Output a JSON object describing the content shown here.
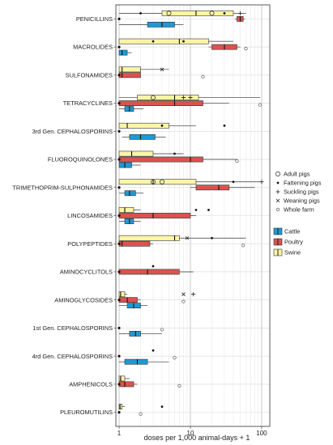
{
  "chart_data": {
    "type": "boxplot",
    "title": "",
    "xlabel": "doses per 1,000 animal-days + 1",
    "ylabel": "",
    "x_scale": "log10",
    "xlim": [
      0.9,
      130
    ],
    "x_ticks": [
      {
        "value": 1,
        "label": "1"
      },
      {
        "value": 10,
        "label": "10"
      },
      {
        "value": 100,
        "label": "100"
      }
    ],
    "grid": true,
    "legend_position": "right",
    "categories": [
      "PENICILLINS",
      "MACROLIDES",
      "SULFONAMIDES",
      "TETRACYCLINES",
      "3rd Gen. CEPHALOSPORINS",
      "FLUOROQUINOLONES",
      "TRIMETHOPRIM-SULPHONAMIDES",
      "LINCOSAMIDES",
      "POLYPEPTIDES",
      "AMINOCYCLITOLS",
      "AMINOGLYCOSIDES",
      "1st Gen. CEPHALOSPORINS",
      "4rd Gen. CEPHALOSPORINS",
      "AMPHENICOLS",
      "PLEUROMUTILINS"
    ],
    "species_legend": [
      {
        "name": "Cattle",
        "color": "#1c9ad6"
      },
      {
        "name": "Poultry",
        "color": "#d9534f"
      },
      {
        "name": "Swine",
        "color": "#fbf5a5"
      }
    ],
    "farm_type_legend": [
      {
        "name": "Adult pigs",
        "marker": "open-circle"
      },
      {
        "name": "Fattening pigs",
        "marker": "filled-dot"
      },
      {
        "name": "Suckling pigs",
        "marker": "plus"
      },
      {
        "name": "Weaning pigs",
        "marker": "cross"
      },
      {
        "name": "Whole farm",
        "marker": "small-open-circle"
      }
    ],
    "series": [
      {
        "name": "Swine",
        "boxes": [
          {
            "category": "PENICILLINS",
            "q1": 4,
            "median": 12,
            "q3": 40,
            "whisker_low": 1,
            "whisker_high": 60
          },
          {
            "category": "MACROLIDES",
            "q1": 1,
            "median": 7,
            "q3": 18,
            "whisker_low": 1,
            "whisker_high": 40
          },
          {
            "category": "SULFONAMIDES",
            "q1": 1,
            "median": 1.1,
            "q3": 2,
            "whisker_low": 1,
            "whisker_high": 5
          },
          {
            "category": "TETRACYCLINES",
            "q1": 1.8,
            "median": 6,
            "q3": 13,
            "whisker_low": 1,
            "whisker_high": 95
          },
          {
            "category": "3rd Gen. CEPHALOSPORINS",
            "q1": 1,
            "median": 1.3,
            "q3": 5,
            "whisker_low": 1,
            "whisker_high": 12
          },
          {
            "category": "FLUOROQUINOLONES",
            "q1": 1,
            "median": 1.5,
            "q3": 3,
            "whisker_low": 1,
            "whisker_high": 8
          },
          {
            "category": "TRIMETHOPRIM-SULPHONAMIDES",
            "q1": 1,
            "median": 3,
            "q3": 12,
            "whisker_low": 1,
            "whisker_high": 100
          },
          {
            "category": "LINCOSAMIDES",
            "q1": 1,
            "median": 1.2,
            "q3": 1.6,
            "whisker_low": 1,
            "whisker_high": 2
          },
          {
            "category": "POLYPEPTIDES",
            "q1": 1,
            "median": 6,
            "q3": 7,
            "whisker_low": 1,
            "whisker_high": 60
          },
          {
            "category": "AMINOGLYCOSIDES",
            "q1": 1,
            "median": 1.05,
            "q3": 1.2,
            "whisker_low": 1,
            "whisker_high": 1.3
          },
          {
            "category": "AMPHENICOLS",
            "q1": 1,
            "median": 1.05,
            "q3": 1.2,
            "whisker_low": 1,
            "whisker_high": 1.4
          },
          {
            "category": "PLEUROMUTILINS",
            "q1": 1,
            "median": 1.03,
            "q3": 1.1,
            "whisker_low": 1,
            "whisker_high": 1.2
          }
        ]
      },
      {
        "name": "Poultry",
        "boxes": [
          {
            "category": "PENICILLINS",
            "q1": 45,
            "median": 50,
            "q3": 55,
            "whisker_low": 42,
            "whisker_high": 58
          },
          {
            "category": "MACROLIDES",
            "q1": 20,
            "median": 30,
            "q3": 45,
            "whisker_low": 18,
            "whisker_high": 50
          },
          {
            "category": "SULFONAMIDES",
            "q1": 1,
            "median": 1.1,
            "q3": 2,
            "whisker_low": 1,
            "whisker_high": 2
          },
          {
            "category": "TETRACYCLINES",
            "q1": 1,
            "median": 6,
            "q3": 15,
            "whisker_low": 1,
            "whisker_high": 35
          },
          {
            "category": "FLUOROQUINOLONES",
            "q1": 1,
            "median": 10,
            "q3": 15,
            "whisker_low": 1,
            "whisker_high": 45
          },
          {
            "category": "TRIMETHOPRIM-SULPHONAMIDES",
            "q1": 12,
            "median": 25,
            "q3": 35,
            "whisker_low": 10,
            "whisker_high": 80
          },
          {
            "category": "LINCOSAMIDES",
            "q1": 1,
            "median": 3,
            "q3": 10,
            "whisker_low": 1,
            "whisker_high": 12
          },
          {
            "category": "POLYPEPTIDES",
            "q1": 1,
            "median": 1.1,
            "q3": 2.7,
            "whisker_low": 1,
            "whisker_high": 3
          },
          {
            "category": "AMINOCYCLITOLS",
            "q1": 1,
            "median": 2.5,
            "q3": 7,
            "whisker_low": 1,
            "whisker_high": 11
          },
          {
            "category": "AMINOGLYCOSIDES",
            "q1": 1,
            "median": 1.3,
            "q3": 1.8,
            "whisker_low": 1,
            "whisker_high": 2
          },
          {
            "category": "AMPHENICOLS",
            "q1": 1,
            "median": 1.2,
            "q3": 1.6,
            "whisker_low": 1,
            "whisker_high": 1.8
          }
        ]
      },
      {
        "name": "Cattle",
        "boxes": [
          {
            "category": "PENICILLINS",
            "q1": 2.5,
            "median": 4,
            "q3": 6,
            "whisker_low": 1,
            "whisker_high": 8
          },
          {
            "category": "MACROLIDES",
            "q1": 1,
            "median": 1.1,
            "q3": 1.3,
            "whisker_low": 1,
            "whisker_high": 1.5
          },
          {
            "category": "TETRACYCLINES",
            "q1": 1.2,
            "median": 1.4,
            "q3": 1.6,
            "whisker_low": 1,
            "whisker_high": 2.2
          },
          {
            "category": "3rd Gen. CEPHALOSPORINS",
            "q1": 1.4,
            "median": 2,
            "q3": 3.2,
            "whisker_low": 1.1,
            "whisker_high": 4.5
          },
          {
            "category": "FLUOROQUINOLONES",
            "q1": 1,
            "median": 1.2,
            "q3": 1.5,
            "whisker_low": 1,
            "whisker_high": 2
          },
          {
            "category": "TRIMETHOPRIM-SULPHONAMIDES",
            "q1": 1.2,
            "median": 1.4,
            "q3": 1.7,
            "whisker_low": 1,
            "whisker_high": 2.2
          },
          {
            "category": "LINCOSAMIDES",
            "q1": 1.2,
            "median": 1.4,
            "q3": 1.6,
            "whisker_low": 1,
            "whisker_high": 2
          },
          {
            "category": "AMINOGLYCOSIDES",
            "q1": 1.3,
            "median": 1.6,
            "q3": 2,
            "whisker_low": 1,
            "whisker_high": 2.5
          },
          {
            "category": "1st Gen. CEPHALOSPORINS",
            "q1": 1.4,
            "median": 1.7,
            "q3": 2,
            "whisker_low": 1,
            "whisker_high": 4
          },
          {
            "category": "4rd Gen. CEPHALOSPORINS",
            "q1": 1.2,
            "median": 1.8,
            "q3": 2.5,
            "whisker_low": 1,
            "whisker_high": 5
          }
        ]
      }
    ],
    "points": [
      {
        "category": "PENICILLINS",
        "x": 5,
        "marker": "open-circle"
      },
      {
        "category": "PENICILLINS",
        "x": 20,
        "marker": "open-circle"
      },
      {
        "category": "PENICILLINS",
        "x": 2,
        "marker": "filled-dot"
      },
      {
        "category": "PENICILLINS",
        "x": 30,
        "marker": "filled-dot"
      },
      {
        "category": "PENICILLINS",
        "x": 50,
        "marker": "plus"
      },
      {
        "category": "MACROLIDES",
        "x": 3,
        "marker": "filled-dot"
      },
      {
        "category": "MACROLIDES",
        "x": 8,
        "marker": "filled-dot"
      },
      {
        "category": "MACROLIDES",
        "x": 60,
        "marker": "small-open-circle"
      },
      {
        "category": "SULFONAMIDES",
        "x": 4,
        "marker": "cross"
      },
      {
        "category": "SULFONAMIDES",
        "x": 15,
        "marker": "small-open-circle"
      },
      {
        "category": "TETRACYCLINES",
        "x": 3,
        "marker": "open-circle"
      },
      {
        "category": "TETRACYCLINES",
        "x": 8,
        "marker": "plus"
      },
      {
        "category": "TETRACYCLINES",
        "x": 10,
        "marker": "plus"
      },
      {
        "category": "TETRACYCLINES",
        "x": 95,
        "marker": "small-open-circle"
      },
      {
        "category": "3rd Gen. CEPHALOSPORINS",
        "x": 4,
        "marker": "filled-dot"
      },
      {
        "category": "3rd Gen. CEPHALOSPORINS",
        "x": 30,
        "marker": "filled-dot"
      },
      {
        "category": "FLUOROQUINOLONES",
        "x": 6,
        "marker": "filled-dot"
      },
      {
        "category": "FLUOROQUINOLONES",
        "x": 45,
        "marker": "small-open-circle"
      },
      {
        "category": "TRIMETHOPRIM-SULPHONAMIDES",
        "x": 3,
        "marker": "open-circle"
      },
      {
        "category": "TRIMETHOPRIM-SULPHONAMIDES",
        "x": 4,
        "marker": "open-circle"
      },
      {
        "category": "TRIMETHOPRIM-SULPHONAMIDES",
        "x": 40,
        "marker": "filled-dot"
      },
      {
        "category": "TRIMETHOPRIM-SULPHONAMIDES",
        "x": 100,
        "marker": "plus"
      },
      {
        "category": "LINCOSAMIDES",
        "x": 12,
        "marker": "filled-dot"
      },
      {
        "category": "LINCOSAMIDES",
        "x": 18,
        "marker": "filled-dot"
      },
      {
        "category": "POLYPEPTIDES",
        "x": 9,
        "marker": "cross"
      },
      {
        "category": "POLYPEPTIDES",
        "x": 20,
        "marker": "filled-dot"
      },
      {
        "category": "POLYPEPTIDES",
        "x": 55,
        "marker": "small-open-circle"
      },
      {
        "category": "AMINOCYCLITOLS",
        "x": 3,
        "marker": "filled-dot"
      },
      {
        "category": "AMINOGLYCOSIDES",
        "x": 8,
        "marker": "cross"
      },
      {
        "category": "AMINOGLYCOSIDES",
        "x": 11,
        "marker": "plus"
      },
      {
        "category": "AMINOGLYCOSIDES",
        "x": 8,
        "marker": "small-open-circle"
      },
      {
        "category": "1st Gen. CEPHALOSPORINS",
        "x": 4,
        "marker": "small-open-circle"
      },
      {
        "category": "4rd Gen. CEPHALOSPORINS",
        "x": 3,
        "marker": "filled-dot"
      },
      {
        "category": "4rd Gen. CEPHALOSPORINS",
        "x": 6,
        "marker": "small-open-circle"
      },
      {
        "category": "AMPHENICOLS",
        "x": 7,
        "marker": "small-open-circle"
      },
      {
        "category": "PLEUROMUTILINS",
        "x": 2,
        "marker": "small-open-circle"
      },
      {
        "category": "PLEUROMUTILINS",
        "x": 4,
        "marker": "filled-dot"
      }
    ]
  }
}
